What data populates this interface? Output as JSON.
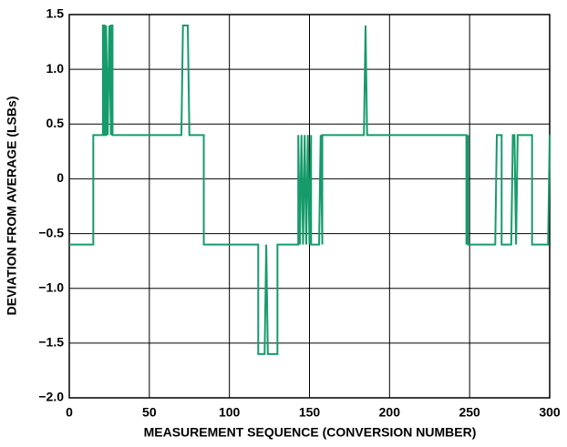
{
  "chart_data": {
    "type": "line",
    "xlabel": "MEASUREMENT SEQUENCE (CONVERSION NUMBER)",
    "ylabel": "DEVIATION FROM AVERAGE (LSBs)",
    "xlim": [
      0,
      300
    ],
    "ylim": [
      -2.0,
      1.5
    ],
    "xticks": [
      0,
      50,
      100,
      150,
      200,
      250,
      300
    ],
    "yticks": [
      {
        "value": -2.0,
        "label": "−2.0"
      },
      {
        "value": -1.5,
        "label": "−1.5"
      },
      {
        "value": -1.0,
        "label": "−1.0"
      },
      {
        "value": -0.5,
        "label": "−0.5"
      },
      0,
      0.5,
      {
        "value": 1.0,
        "label": "1.0"
      },
      1.5
    ],
    "grid": true,
    "series": [
      {
        "color": "#169b6b",
        "x": [
          0,
          15,
          15,
          21,
          21,
          22,
          22,
          23,
          23,
          24,
          25,
          26,
          26,
          27,
          27,
          70,
          71,
          74,
          75,
          84,
          84,
          118,
          118,
          122,
          123,
          124,
          130,
          130,
          143,
          143,
          144,
          145,
          146,
          147,
          148,
          149,
          150,
          151,
          151,
          156,
          157,
          158,
          158,
          184,
          185,
          186,
          248,
          248,
          249,
          249,
          266,
          267,
          270,
          270,
          276,
          277,
          278,
          279,
          280,
          289,
          289,
          299,
          300
        ],
        "values": [
          -0.6,
          -0.6,
          0.4,
          0.4,
          1.4,
          1.4,
          0.4,
          0.4,
          1.4,
          0.4,
          1.4,
          0.4,
          1.4,
          1.4,
          0.4,
          0.4,
          1.4,
          1.4,
          0.4,
          0.4,
          -0.6,
          -0.6,
          -1.6,
          -1.6,
          -0.6,
          -1.6,
          -1.6,
          -0.6,
          -0.6,
          0.4,
          -0.6,
          0.4,
          -0.6,
          0.4,
          -0.6,
          0.4,
          -0.6,
          0.4,
          -0.6,
          -0.6,
          0.4,
          -0.6,
          0.4,
          0.4,
          1.4,
          0.4,
          0.4,
          -0.6,
          0.4,
          -0.6,
          -0.6,
          0.4,
          0.4,
          -0.6,
          -0.6,
          0.4,
          0.4,
          -0.6,
          0.4,
          0.4,
          -0.6,
          -0.6,
          0.4
        ]
      }
    ]
  }
}
